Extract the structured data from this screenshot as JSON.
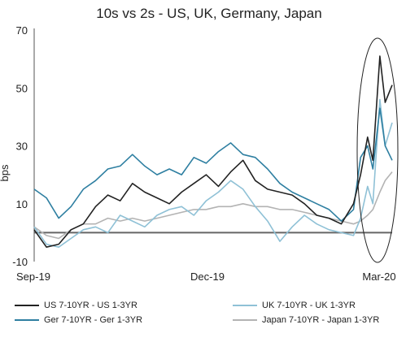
{
  "chart_data": {
    "type": "line",
    "title": "10s vs 2s - US, UK, Germany, Japan",
    "xlabel": "",
    "ylabel": "bps",
    "ylim": [
      -10,
      70
    ],
    "yticks": [
      -10,
      10,
      30,
      50,
      70
    ],
    "xticks": [
      "Sep-19",
      "Dec-19",
      "Mar-20"
    ],
    "x": [
      "2019-09-01",
      "2019-09-08",
      "2019-09-15",
      "2019-09-22",
      "2019-09-29",
      "2019-10-06",
      "2019-10-13",
      "2019-10-20",
      "2019-10-27",
      "2019-11-03",
      "2019-11-10",
      "2019-11-17",
      "2019-11-24",
      "2019-12-01",
      "2019-12-08",
      "2019-12-15",
      "2019-12-22",
      "2019-12-29",
      "2020-01-05",
      "2020-01-12",
      "2020-01-19",
      "2020-01-26",
      "2020-02-02",
      "2020-02-09",
      "2020-02-16",
      "2020-02-23",
      "2020-03-01",
      "2020-03-05",
      "2020-03-09",
      "2020-03-12",
      "2020-03-16",
      "2020-03-19",
      "2020-03-23"
    ],
    "zero_line": true,
    "annotation": "ellipse around March 2020 spike",
    "series": [
      {
        "name": "US 7-10YR - US 1-3YR",
        "color": "#222222",
        "values": [
          1,
          -5,
          -4,
          1,
          3,
          9,
          13,
          11,
          17,
          14,
          12,
          10,
          14,
          17,
          20,
          16,
          21,
          25,
          18,
          15,
          14,
          13,
          10,
          6,
          5,
          3,
          10,
          20,
          33,
          25,
          61,
          45,
          51
        ]
      },
      {
        "name": "UK 7-10YR - UK 1-3YR",
        "color": "#8fc1d6",
        "values": [
          2,
          -4,
          -5,
          -2,
          1,
          2,
          0,
          6,
          4,
          2,
          6,
          8,
          9,
          6,
          11,
          14,
          18,
          15,
          9,
          4,
          -3,
          2,
          6,
          3,
          1,
          0,
          -1,
          5,
          16,
          10,
          46,
          30,
          38
        ]
      },
      {
        "name": "Ger 7-10YR - Ger 1-3YR",
        "color": "#2e7fa1",
        "values": [
          15,
          12,
          5,
          9,
          15,
          18,
          22,
          23,
          27,
          23,
          20,
          22,
          20,
          26,
          24,
          28,
          31,
          27,
          26,
          22,
          17,
          14,
          12,
          10,
          8,
          4,
          8,
          26,
          30,
          22,
          43,
          30,
          25
        ]
      },
      {
        "name": "Japan 7-10YR - Japan 1-3YR",
        "color": "#b3b3b3",
        "values": [
          2,
          -1,
          -2,
          1,
          3,
          3,
          5,
          4,
          5,
          4,
          5,
          6,
          7,
          8,
          8,
          9,
          9,
          10,
          9,
          9,
          8,
          8,
          7,
          6,
          5,
          4,
          3,
          4,
          6,
          8,
          14,
          18,
          21
        ]
      }
    ]
  }
}
